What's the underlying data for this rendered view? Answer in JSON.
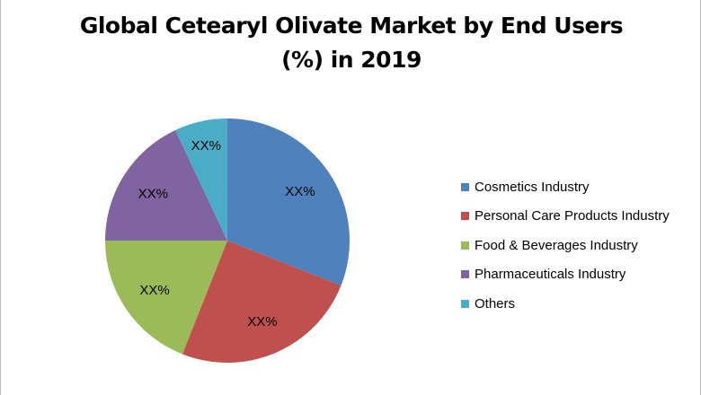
{
  "chart_data": {
    "type": "pie",
    "title": "Global Cetearyl Olivate Market by End Users (%) in 2019",
    "title_lines": [
      "Global Cetearyl Olivate Market by End Users",
      "(%) in 2019"
    ],
    "categories": [
      "Cosmetics Industry",
      "Personal Care Products Industry",
      "Food & Beverages Industry",
      "Pharmaceuticals Industry",
      "Others"
    ],
    "values": [
      31,
      25,
      19,
      18,
      7
    ],
    "data_labels": [
      "XX%",
      "XX%",
      "XX%",
      "XX%",
      "XX%"
    ],
    "colors": [
      "#4f81bd",
      "#c0504d",
      "#9bbb59",
      "#8064a2",
      "#4bacc6"
    ],
    "start_angle": "12 o'clock",
    "direction": "clockwise",
    "legend_position": "right"
  }
}
